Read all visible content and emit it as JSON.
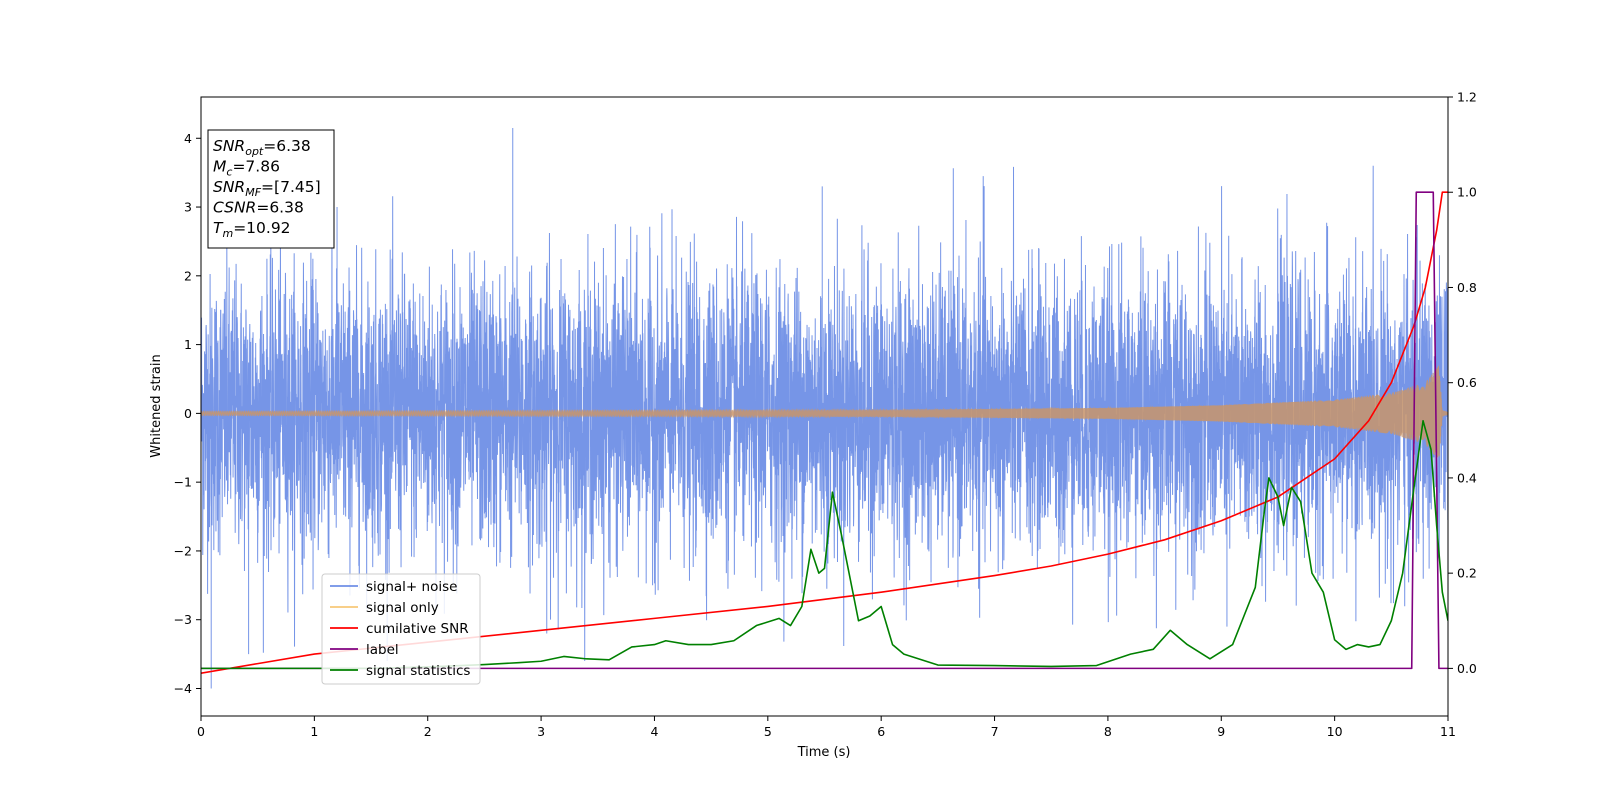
{
  "chart_data": {
    "type": "line",
    "xlabel": "Time (s)",
    "ylabel": "Whitened strain",
    "xlim": [
      0,
      11
    ],
    "ylim_left": [
      -4.4,
      4.6
    ],
    "ylim_right": [
      -0.1,
      1.2
    ],
    "x_ticks": [
      0,
      1,
      2,
      3,
      4,
      5,
      6,
      7,
      8,
      9,
      10,
      11
    ],
    "y_ticks_left": [
      -4,
      -3,
      -2,
      -1,
      0,
      1,
      2,
      3,
      4
    ],
    "y_ticks_right": [
      0.0,
      0.2,
      0.4,
      0.6,
      0.8,
      1.0,
      1.2
    ],
    "grid": false,
    "legend_position": "lower-left",
    "annotation": [
      {
        "italic": "SNR",
        "sub": "opt",
        "value": "=6.38"
      },
      {
        "italic": "M",
        "sub": "c",
        "value": "=7.86"
      },
      {
        "italic": "SNR",
        "sub": "MF",
        "value": "=[7.45]"
      },
      {
        "italic": "CSNR",
        "sub": "",
        "value": "=6.38"
      },
      {
        "italic": "T",
        "sub": "m",
        "value": "=10.92"
      }
    ],
    "series": [
      {
        "name": "signal+ noise",
        "axis": "left",
        "color": "#6f8fe6",
        "kind": "noise",
        "sigma_at": [
          [
            0,
            1.0
          ],
          [
            11,
            1.0
          ]
        ],
        "peaks": [
          [
            2.75,
            4.15
          ],
          [
            0.09,
            -4.0
          ],
          [
            0.42,
            -3.5
          ],
          [
            1.2,
            3.0
          ],
          [
            3.05,
            -3.2
          ],
          [
            6.9,
            3.45
          ],
          [
            9.05,
            -3.1
          ],
          [
            5.48,
            3.3
          ]
        ]
      },
      {
        "name": "signal only",
        "axis": "left",
        "color": "#f7c878",
        "kind": "chirp",
        "amplitude": [
          [
            0,
            0.03
          ],
          [
            6,
            0.05
          ],
          [
            8,
            0.08
          ],
          [
            9,
            0.12
          ],
          [
            10,
            0.2
          ],
          [
            10.5,
            0.3
          ],
          [
            10.8,
            0.45
          ],
          [
            10.92,
            0.7
          ],
          [
            10.95,
            0.05
          ],
          [
            11,
            0.02
          ]
        ]
      },
      {
        "name": "cumilative SNR",
        "axis": "right",
        "color": "#ff0000",
        "points": [
          [
            0,
            -0.01
          ],
          [
            0.5,
            0.01
          ],
          [
            1,
            0.03
          ],
          [
            2,
            0.055
          ],
          [
            3,
            0.08
          ],
          [
            4,
            0.105
          ],
          [
            5,
            0.13
          ],
          [
            6,
            0.16
          ],
          [
            7,
            0.195
          ],
          [
            7.5,
            0.215
          ],
          [
            8,
            0.24
          ],
          [
            8.5,
            0.27
          ],
          [
            9,
            0.31
          ],
          [
            9.5,
            0.36
          ],
          [
            10,
            0.44
          ],
          [
            10.3,
            0.52
          ],
          [
            10.5,
            0.6
          ],
          [
            10.7,
            0.72
          ],
          [
            10.8,
            0.8
          ],
          [
            10.9,
            0.92
          ],
          [
            10.95,
            1.0
          ],
          [
            11,
            1.0
          ]
        ]
      },
      {
        "name": "label",
        "axis": "right",
        "color": "#800080",
        "points": [
          [
            0,
            0.0
          ],
          [
            10.68,
            0.0
          ],
          [
            10.72,
            1.0
          ],
          [
            10.87,
            1.0
          ],
          [
            10.92,
            0.0
          ],
          [
            11,
            0.0
          ]
        ]
      },
      {
        "name": "signal statistics",
        "axis": "right",
        "color": "#008000",
        "points": [
          [
            0,
            0.0
          ],
          [
            1.5,
            0.0
          ],
          [
            2,
            0.003
          ],
          [
            2.5,
            0.008
          ],
          [
            2.8,
            0.012
          ],
          [
            3,
            0.015
          ],
          [
            3.2,
            0.025
          ],
          [
            3.4,
            0.02
          ],
          [
            3.6,
            0.018
          ],
          [
            3.8,
            0.045
          ],
          [
            4,
            0.05
          ],
          [
            4.1,
            0.058
          ],
          [
            4.3,
            0.05
          ],
          [
            4.5,
            0.05
          ],
          [
            4.7,
            0.058
          ],
          [
            4.9,
            0.09
          ],
          [
            5.1,
            0.105
          ],
          [
            5.2,
            0.09
          ],
          [
            5.3,
            0.13
          ],
          [
            5.38,
            0.25
          ],
          [
            5.45,
            0.2
          ],
          [
            5.5,
            0.21
          ],
          [
            5.57,
            0.37
          ],
          [
            5.65,
            0.28
          ],
          [
            5.8,
            0.1
          ],
          [
            5.9,
            0.11
          ],
          [
            6,
            0.13
          ],
          [
            6.1,
            0.05
          ],
          [
            6.2,
            0.03
          ],
          [
            6.5,
            0.007
          ],
          [
            7,
            0.006
          ],
          [
            7.5,
            0.004
          ],
          [
            7.9,
            0.006
          ],
          [
            8.2,
            0.03
          ],
          [
            8.4,
            0.04
          ],
          [
            8.55,
            0.08
          ],
          [
            8.7,
            0.05
          ],
          [
            8.9,
            0.02
          ],
          [
            9.1,
            0.05
          ],
          [
            9.2,
            0.11
          ],
          [
            9.3,
            0.17
          ],
          [
            9.38,
            0.33
          ],
          [
            9.42,
            0.4
          ],
          [
            9.5,
            0.36
          ],
          [
            9.55,
            0.3
          ],
          [
            9.62,
            0.38
          ],
          [
            9.7,
            0.35
          ],
          [
            9.8,
            0.2
          ],
          [
            9.9,
            0.16
          ],
          [
            10,
            0.06
          ],
          [
            10.1,
            0.04
          ],
          [
            10.2,
            0.05
          ],
          [
            10.3,
            0.045
          ],
          [
            10.4,
            0.05
          ],
          [
            10.5,
            0.1
          ],
          [
            10.6,
            0.2
          ],
          [
            10.7,
            0.38
          ],
          [
            10.78,
            0.52
          ],
          [
            10.85,
            0.46
          ],
          [
            10.9,
            0.3
          ],
          [
            10.95,
            0.16
          ],
          [
            11,
            0.1
          ]
        ]
      }
    ]
  }
}
